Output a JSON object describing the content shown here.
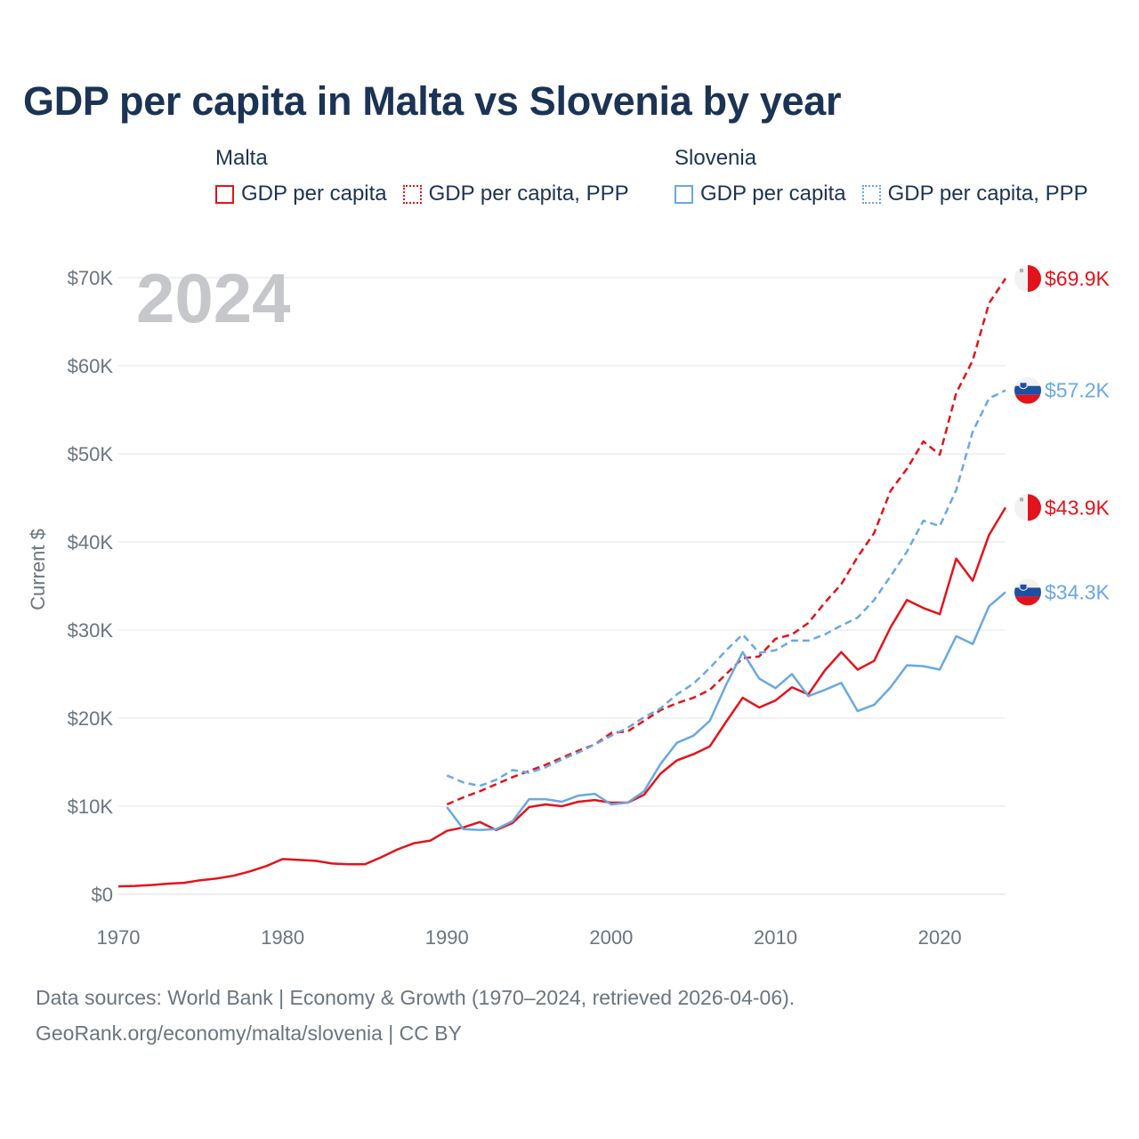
{
  "title": "GDP per capita in Malta vs Slovenia by year",
  "legend": {
    "groups": [
      {
        "country": "Malta",
        "items": [
          {
            "label": "GDP per capita",
            "color": "#e3131b",
            "style": "solid"
          },
          {
            "label": "GDP per capita, PPP",
            "color": "#e3131b",
            "style": "dotted"
          }
        ]
      },
      {
        "country": "Slovenia",
        "items": [
          {
            "label": "GDP per capita",
            "color": "#6aa8e0",
            "style": "solid"
          },
          {
            "label": "GDP per capita, PPP",
            "color": "#6aa8e0",
            "style": "dotted"
          }
        ]
      }
    ]
  },
  "year_overlay": "2024",
  "source_line1": "Data sources: World Bank | Economy & Growth (1970–2024, retrieved 2026-04-06).",
  "source_line2": "GeoRank.org/economy/malta/slovenia | CC BY",
  "chart_data": {
    "type": "line",
    "title": "GDP per capita in Malta vs Slovenia by year",
    "xlabel": "",
    "ylabel": "Current $",
    "xlim": [
      1970,
      2024
    ],
    "ylim": [
      0,
      70000
    ],
    "x_ticks": [
      1970,
      1980,
      1990,
      2000,
      2010,
      2020
    ],
    "y_ticks": [
      0,
      10000,
      20000,
      30000,
      40000,
      50000,
      60000,
      70000
    ],
    "y_tick_labels": [
      "$0",
      "$10K",
      "$20K",
      "$30K",
      "$40K",
      "$50K",
      "$60K",
      "$70K"
    ],
    "grid": true,
    "series": [
      {
        "name": "Malta GDP per capita",
        "color": "#e3131b",
        "dash": "solid",
        "end_label": "$43.9K",
        "flag": "malta",
        "start_year": 1970,
        "values": [
          900,
          950,
          1050,
          1200,
          1300,
          1600,
          1800,
          2100,
          2600,
          3200,
          4000,
          3900,
          3800,
          3500,
          3400,
          3400,
          4200,
          5100,
          5800,
          6100,
          7200,
          7600,
          8200,
          7300,
          8100,
          9900,
          10200,
          10000,
          10500,
          10700,
          10400,
          10400,
          11300,
          13700,
          15200,
          15900,
          16800,
          19600,
          22300,
          21200,
          22000,
          23500,
          22700,
          25400,
          27500,
          25500,
          26500,
          30300,
          33400,
          32500,
          31800,
          38100,
          35600,
          40800,
          43900
        ]
      },
      {
        "name": "Malta GDP per capita, PPP",
        "color": "#e3131b",
        "dash": "dashed",
        "end_label": "$69.9K",
        "flag": "malta",
        "start_year": 1990,
        "values": [
          10200,
          11000,
          11700,
          12500,
          13300,
          14000,
          14700,
          15500,
          16300,
          17000,
          18300,
          18500,
          19700,
          20900,
          21700,
          22300,
          23200,
          25000,
          26800,
          27000,
          29000,
          29500,
          30800,
          33100,
          35200,
          38300,
          41000,
          45800,
          48300,
          51400,
          49900,
          56900,
          60600,
          67100,
          69900
        ]
      },
      {
        "name": "Slovenia GDP per capita",
        "color": "#6aa8e0",
        "dash": "solid",
        "end_label": "$34.3K",
        "flag": "slovenia",
        "start_year": 1990,
        "values": [
          9900,
          7400,
          7300,
          7400,
          8300,
          10800,
          10800,
          10500,
          11200,
          11400,
          10200,
          10400,
          11700,
          14800,
          17200,
          18000,
          19700,
          23800,
          27500,
          24500,
          23400,
          25000,
          22500,
          23200,
          24000,
          20800,
          21500,
          23500,
          26000,
          25900,
          25500,
          29300,
          28400,
          32700,
          34300
        ]
      },
      {
        "name": "Slovenia GDP per capita, PPP",
        "color": "#6aa8e0",
        "dash": "dashed",
        "end_label": "$57.2K",
        "flag": "slovenia",
        "start_year": 1990,
        "values": [
          13500,
          12700,
          12300,
          13000,
          14100,
          13800,
          14400,
          15300,
          16100,
          17000,
          18000,
          18900,
          20100,
          21100,
          22700,
          23900,
          25700,
          27700,
          29500,
          27400,
          27700,
          28800,
          28800,
          29500,
          30500,
          31400,
          33400,
          36100,
          38900,
          42400,
          41800,
          45900,
          52500,
          56300,
          57200
        ]
      }
    ]
  }
}
